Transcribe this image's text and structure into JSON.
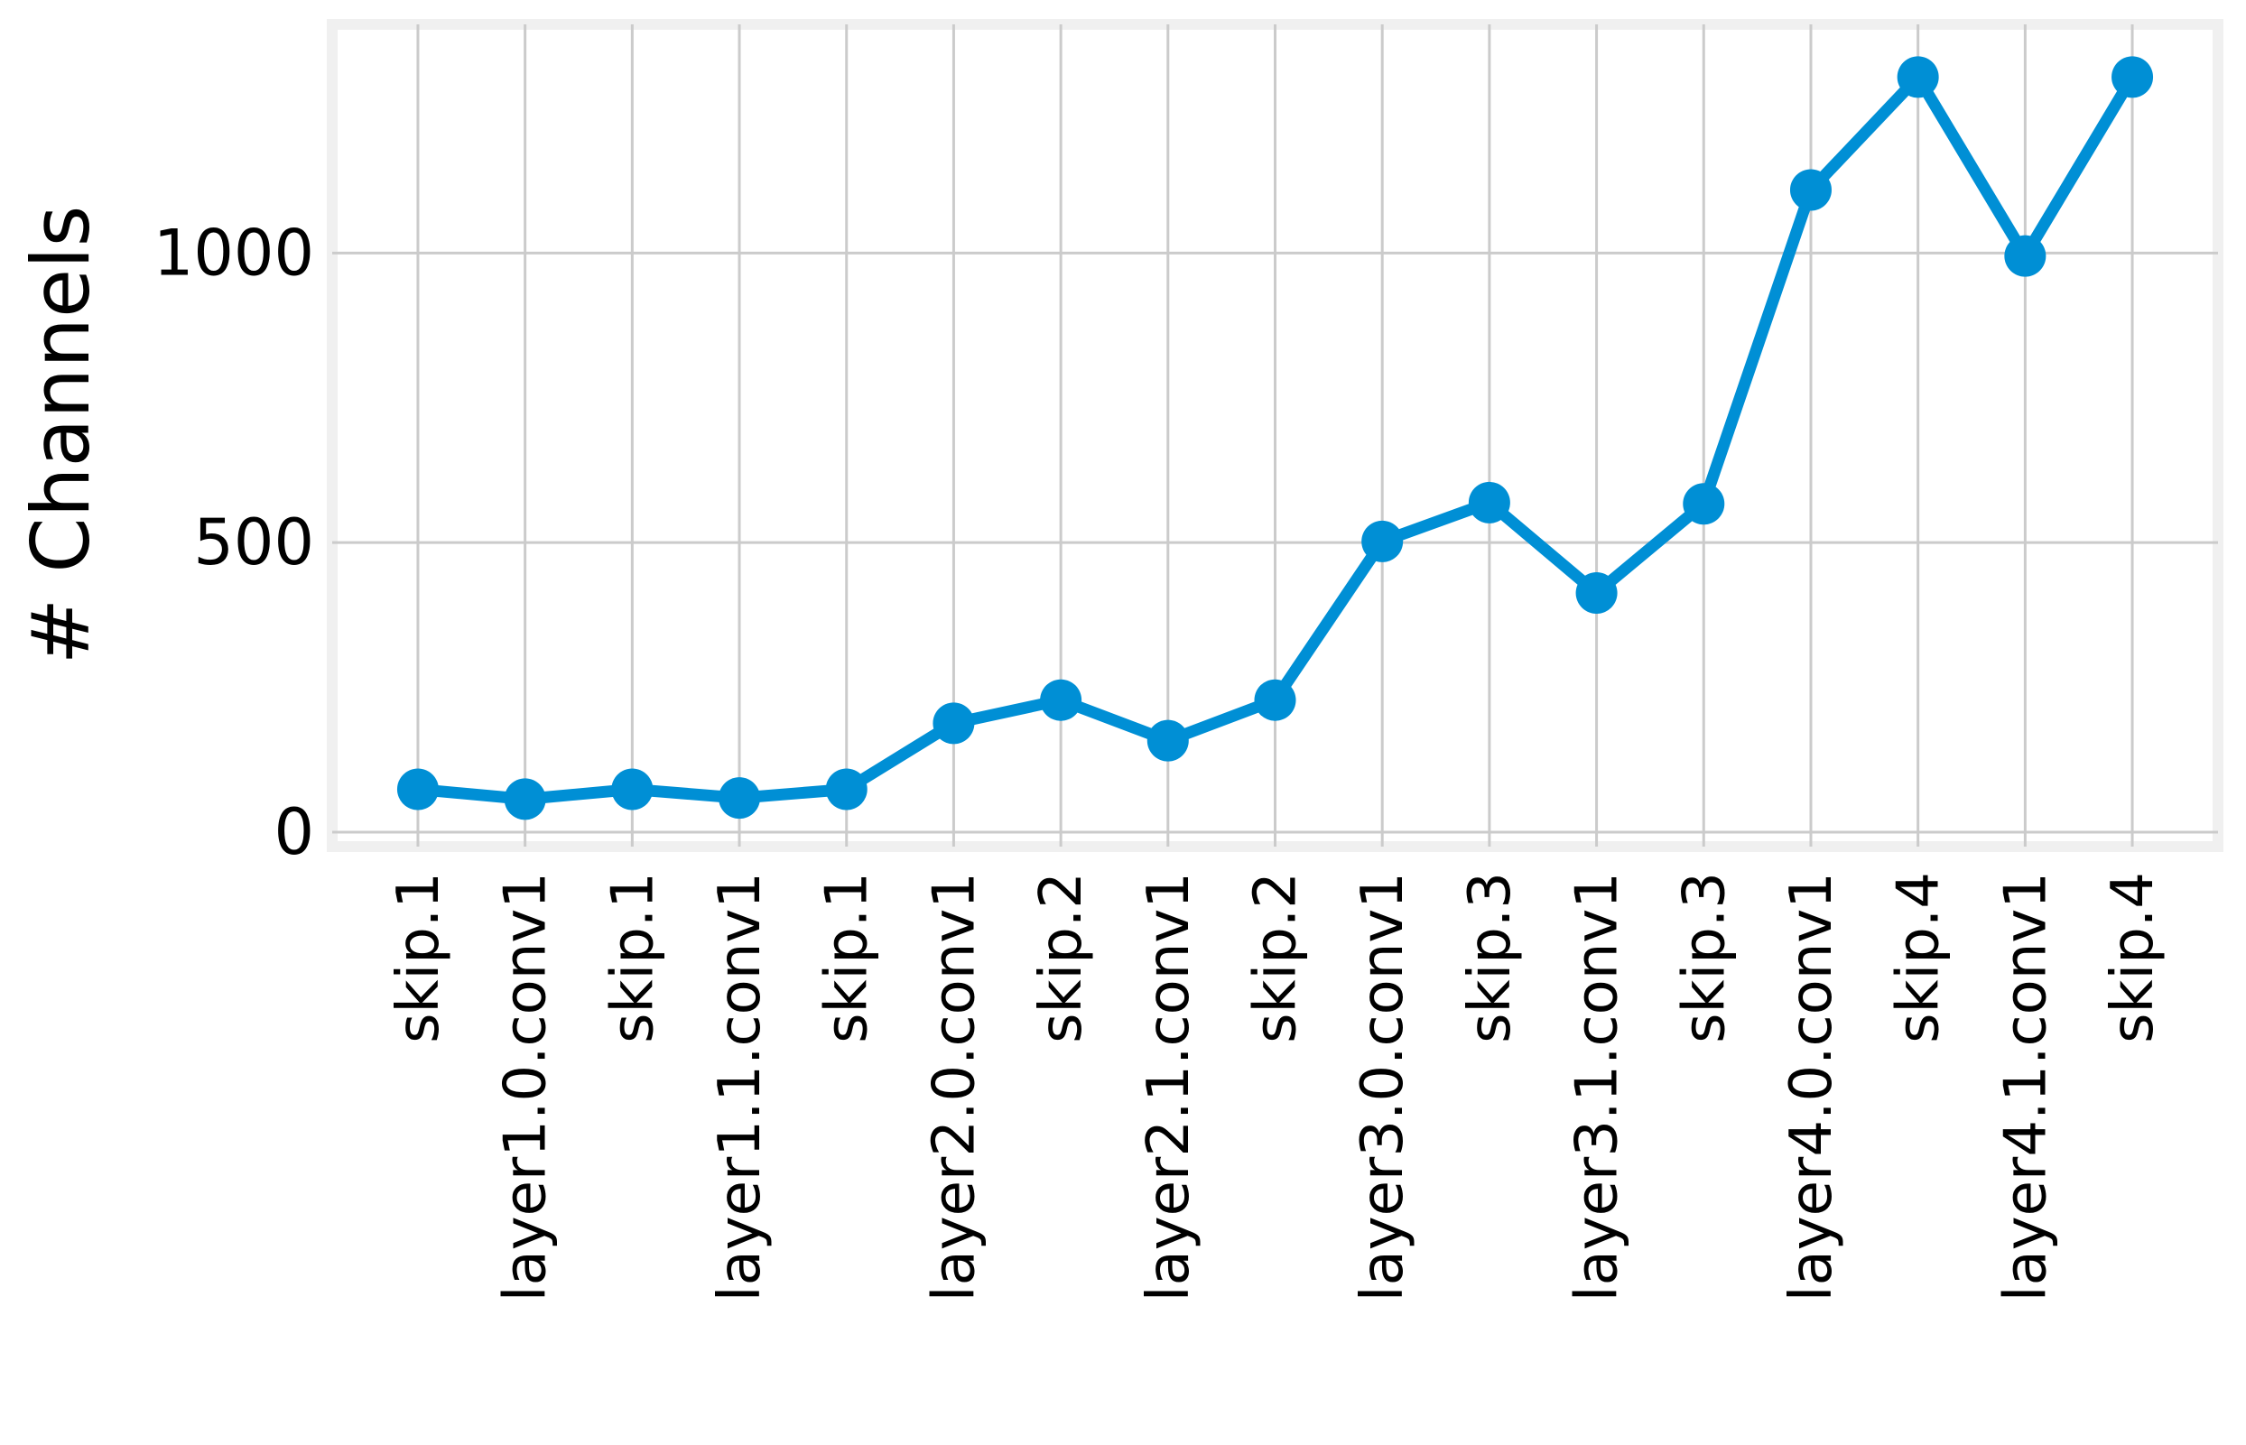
{
  "chart_data": {
    "type": "line",
    "y_label": "# Channels",
    "categories": [
      "skip.1",
      "layer1.0.conv1",
      "skip.1",
      "layer1.1.conv1",
      "skip.1",
      "layer2.0.conv1",
      "skip.2",
      "layer2.1.conv1",
      "skip.2",
      "layer3.0.conv1",
      "skip.3",
      "layer3.1.conv1",
      "skip.3",
      "layer4.0.conv1",
      "skip.4",
      "layer4.1.conv1",
      "skip.4"
    ],
    "series": [
      {
        "color": "#008fd5",
        "values": [
          74,
          57,
          74,
          59,
          74,
          188,
          228,
          158,
          228,
          502,
          569,
          413,
          567,
          1109,
          1304,
          995,
          1304
        ]
      }
    ],
    "ylim": [
      -25,
      1395
    ],
    "yticks": [
      0,
      500,
      1000
    ],
    "grid": true
  }
}
